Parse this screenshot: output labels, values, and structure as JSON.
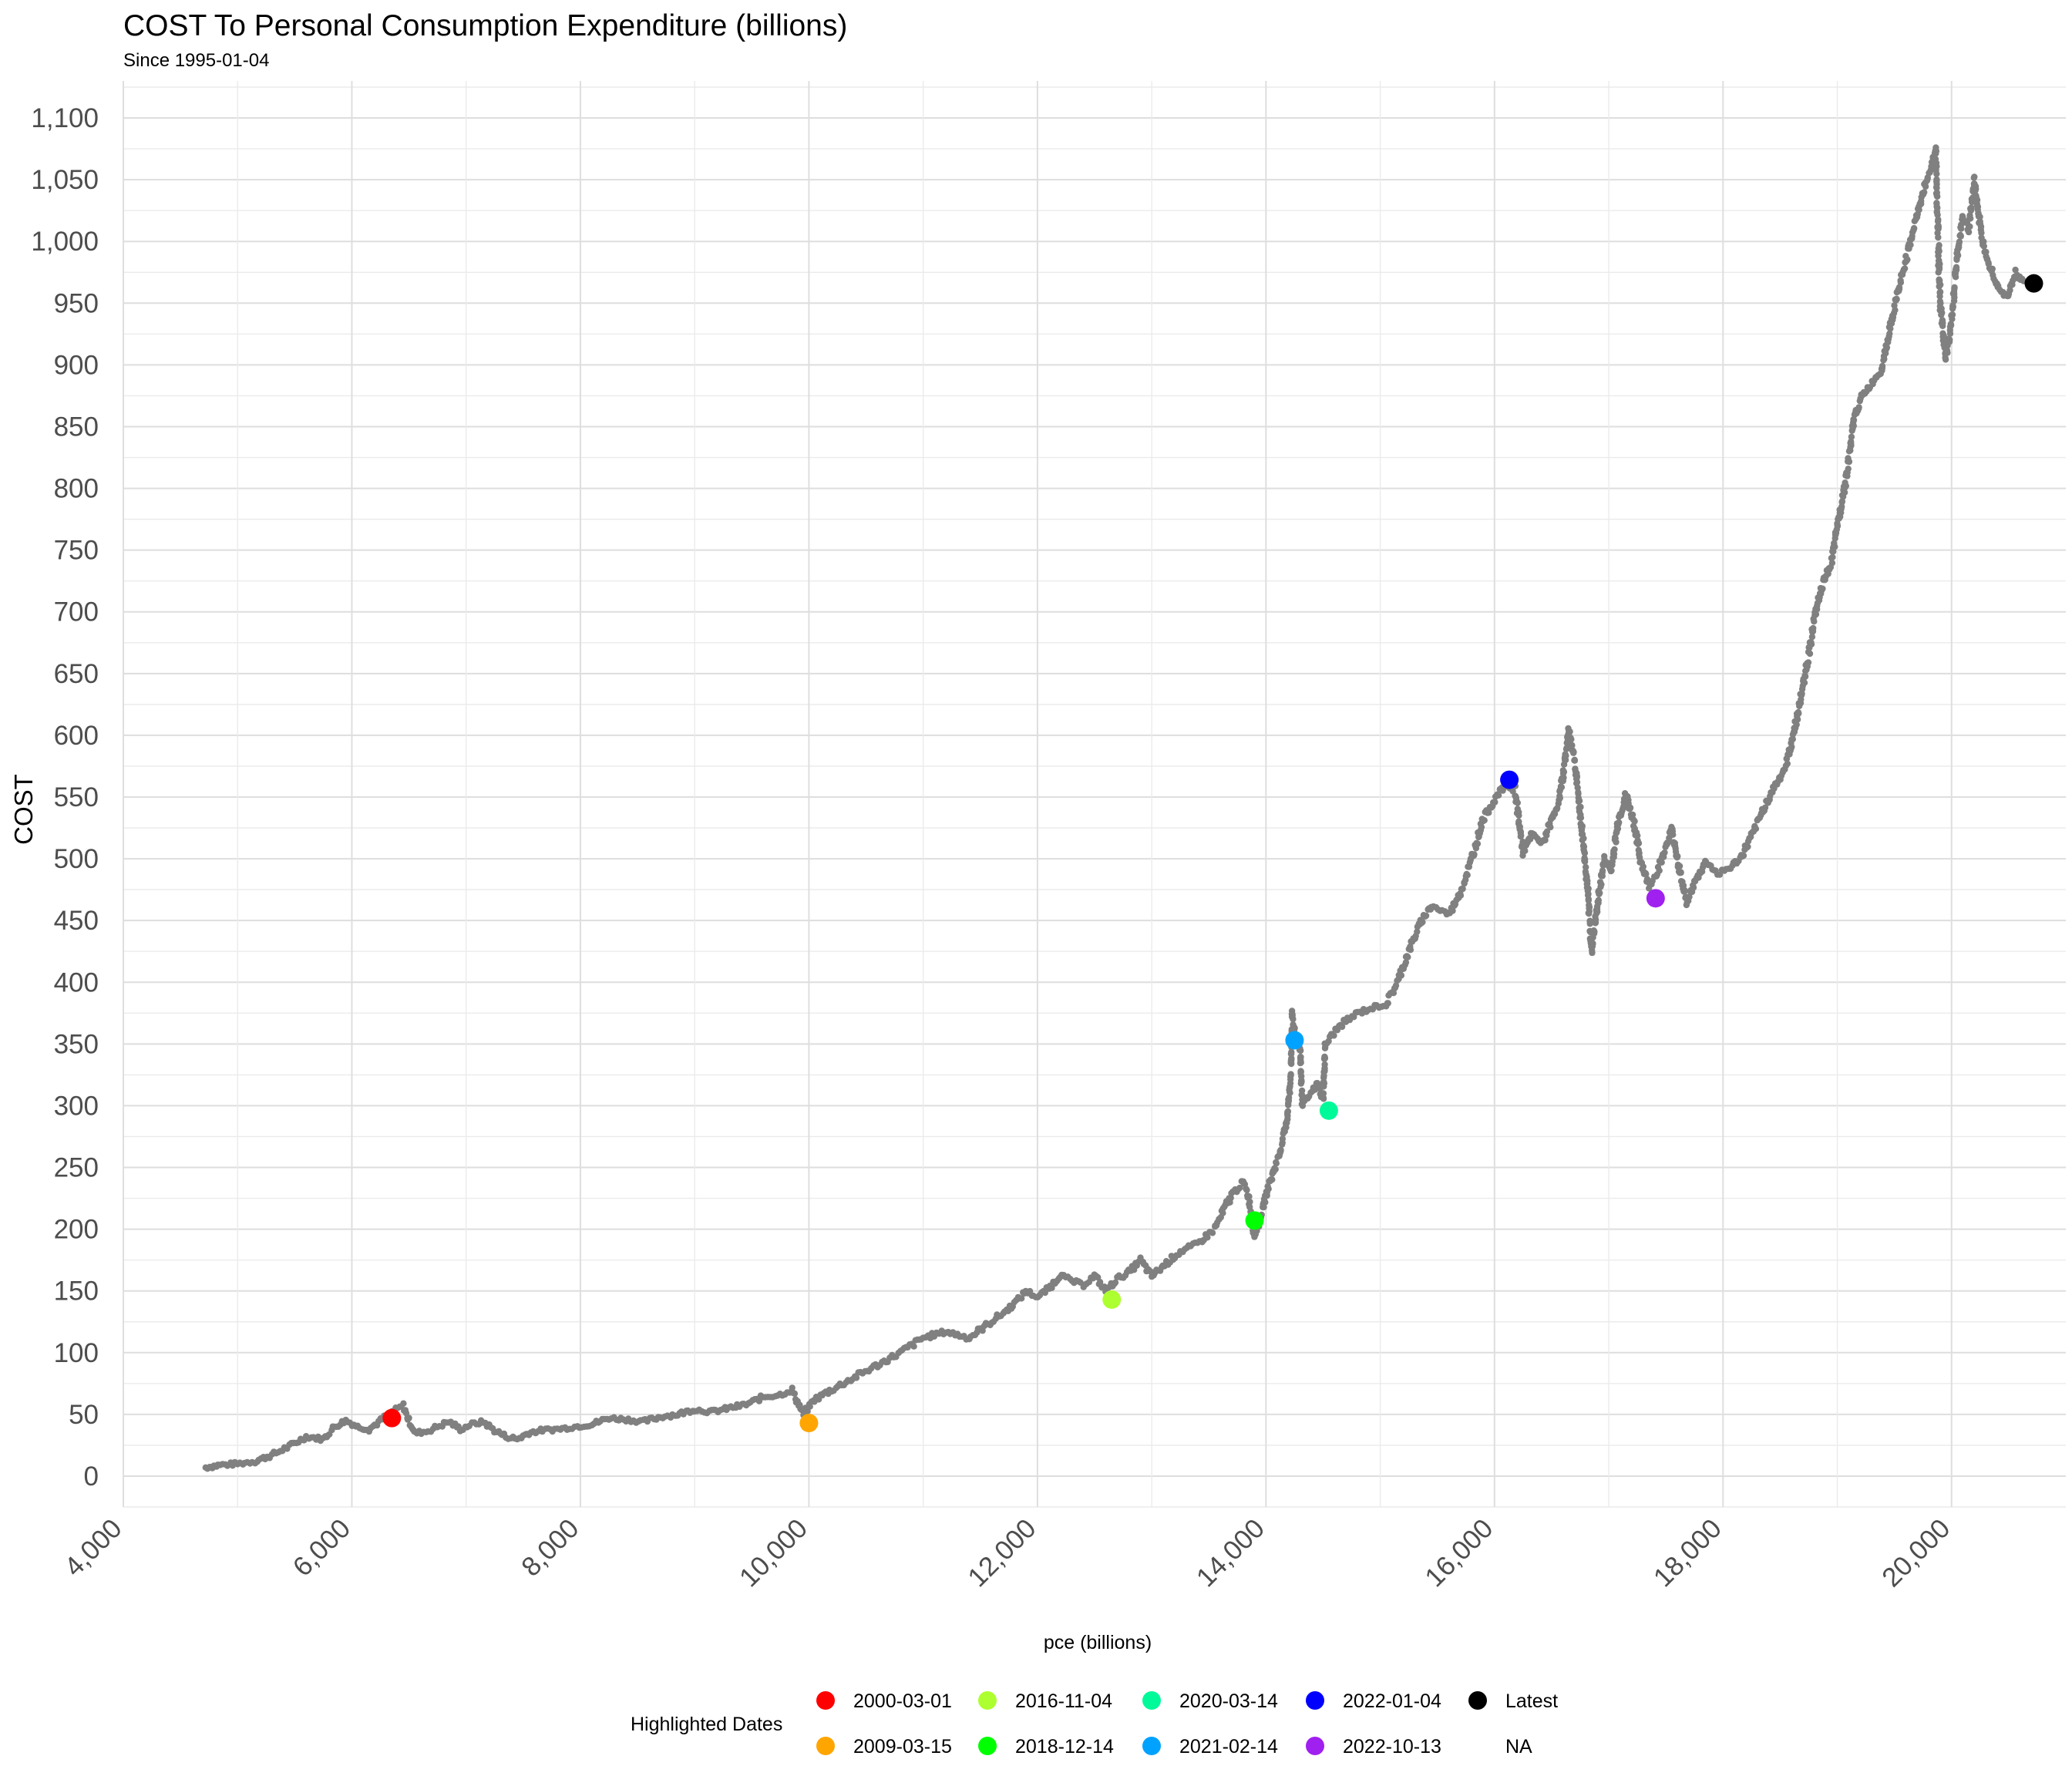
{
  "chart_data": {
    "type": "scatter",
    "title": "COST To Personal Consumption Expenditure (billions)",
    "subtitle": "Since 1995-01-04",
    "xlabel": "pce (billions)",
    "ylabel": "COST",
    "xlim": [
      4000,
      21000
    ],
    "ylim": [
      -25,
      1130
    ],
    "x_ticks": [
      4000,
      6000,
      8000,
      10000,
      12000,
      14000,
      16000,
      18000,
      20000
    ],
    "x_tick_labels": [
      "4,000",
      "6,000",
      "8,000",
      "10,000",
      "12,000",
      "14,000",
      "16,000",
      "18,000",
      "20,000"
    ],
    "y_ticks": [
      0,
      50,
      100,
      150,
      200,
      250,
      300,
      350,
      400,
      450,
      500,
      550,
      600,
      650,
      700,
      750,
      800,
      850,
      900,
      950,
      1000,
      1050,
      1100
    ],
    "y_tick_labels": [
      "0",
      "50",
      "100",
      "150",
      "200",
      "250",
      "300",
      "350",
      "400",
      "450",
      "500",
      "550",
      "600",
      "650",
      "700",
      "750",
      "800",
      "850",
      "900",
      "950",
      "1,000",
      "1,050",
      "1,100"
    ],
    "grid": true,
    "background_series": {
      "color": "#808080",
      "points": [
        [
          4720,
          7
        ],
        [
          4850,
          9
        ],
        [
          5000,
          10
        ],
        [
          5150,
          12
        ],
        [
          5300,
          17
        ],
        [
          5450,
          24
        ],
        [
          5600,
          32
        ],
        [
          5750,
          30
        ],
        [
          5850,
          40
        ],
        [
          5950,
          45
        ],
        [
          6050,
          40
        ],
        [
          6150,
          38
        ],
        [
          6250,
          45
        ],
        [
          6350,
          52
        ],
        [
          6450,
          57
        ],
        [
          6500,
          45
        ],
        [
          6550,
          35
        ],
        [
          6650,
          36
        ],
        [
          6750,
          40
        ],
        [
          6850,
          44
        ],
        [
          6950,
          38
        ],
        [
          7050,
          42
        ],
        [
          7150,
          44
        ],
        [
          7250,
          37
        ],
        [
          7350,
          32
        ],
        [
          7450,
          30
        ],
        [
          7550,
          35
        ],
        [
          7650,
          37
        ],
        [
          7800,
          38
        ],
        [
          7950,
          40
        ],
        [
          8100,
          42
        ],
        [
          8250,
          47
        ],
        [
          8400,
          46
        ],
        [
          8550,
          44
        ],
        [
          8700,
          48
        ],
        [
          8850,
          50
        ],
        [
          9000,
          54
        ],
        [
          9150,
          52
        ],
        [
          9300,
          55
        ],
        [
          9450,
          58
        ],
        [
          9600,
          64
        ],
        [
          9750,
          66
        ],
        [
          9850,
          70
        ],
        [
          9900,
          60
        ],
        [
          9950,
          50
        ],
        [
          10050,
          62
        ],
        [
          10200,
          70
        ],
        [
          10400,
          80
        ],
        [
          10600,
          90
        ],
        [
          10800,
          100
        ],
        [
          11000,
          112
        ],
        [
          11200,
          117
        ],
        [
          11400,
          112
        ],
        [
          11550,
          122
        ],
        [
          11700,
          132
        ],
        [
          11800,
          140
        ],
        [
          11900,
          150
        ],
        [
          12000,
          145
        ],
        [
          12100,
          152
        ],
        [
          12200,
          163
        ],
        [
          12300,
          158
        ],
        [
          12400,
          155
        ],
        [
          12500,
          162
        ],
        [
          12600,
          150
        ],
        [
          12700,
          160
        ],
        [
          12800,
          165
        ],
        [
          12900,
          175
        ],
        [
          13000,
          162
        ],
        [
          13100,
          170
        ],
        [
          13250,
          182
        ],
        [
          13400,
          188
        ],
        [
          13550,
          200
        ],
        [
          13700,
          228
        ],
        [
          13800,
          238
        ],
        [
          13850,
          225
        ],
        [
          13900,
          195
        ],
        [
          13950,
          208
        ],
        [
          14000,
          228
        ],
        [
          14050,
          242
        ],
        [
          14120,
          262
        ],
        [
          14180,
          285
        ],
        [
          14200,
          305
        ],
        [
          14220,
          330
        ],
        [
          14230,
          375
        ],
        [
          14250,
          360
        ],
        [
          14300,
          345
        ],
        [
          14320,
          300
        ],
        [
          14380,
          308
        ],
        [
          14450,
          318
        ],
        [
          14500,
          305
        ],
        [
          14520,
          350
        ],
        [
          14650,
          365
        ],
        [
          14800,
          375
        ],
        [
          14950,
          380
        ],
        [
          15050,
          382
        ],
        [
          15150,
          400
        ],
        [
          15250,
          425
        ],
        [
          15350,
          448
        ],
        [
          15450,
          462
        ],
        [
          15600,
          455
        ],
        [
          15700,
          472
        ],
        [
          15800,
          500
        ],
        [
          15900,
          532
        ],
        [
          16000,
          548
        ],
        [
          16100,
          560
        ],
        [
          16180,
          555
        ],
        [
          16250,
          505
        ],
        [
          16330,
          520
        ],
        [
          16420,
          512
        ],
        [
          16500,
          532
        ],
        [
          16560,
          545
        ],
        [
          16600,
          568
        ],
        [
          16650,
          605
        ],
        [
          16700,
          580
        ],
        [
          16780,
          510
        ],
        [
          16820,
          470
        ],
        [
          16850,
          425
        ],
        [
          16900,
          462
        ],
        [
          16960,
          500
        ],
        [
          17020,
          490
        ],
        [
          17080,
          530
        ],
        [
          17150,
          552
        ],
        [
          17220,
          530
        ],
        [
          17280,
          498
        ],
        [
          17350,
          478
        ],
        [
          17420,
          488
        ],
        [
          17500,
          510
        ],
        [
          17550,
          525
        ],
        [
          17600,
          500
        ],
        [
          17680,
          465
        ],
        [
          17750,
          480
        ],
        [
          17850,
          498
        ],
        [
          17950,
          488
        ],
        [
          18050,
          492
        ],
        [
          18150,
          500
        ],
        [
          18250,
          518
        ],
        [
          18350,
          540
        ],
        [
          18450,
          558
        ],
        [
          18550,
          575
        ],
        [
          18650,
          615
        ],
        [
          18720,
          650
        ],
        [
          18800,
          695
        ],
        [
          18880,
          725
        ],
        [
          18950,
          740
        ],
        [
          19000,
          770
        ],
        [
          19080,
          810
        ],
        [
          19150,
          858
        ],
        [
          19220,
          875
        ],
        [
          19300,
          885
        ],
        [
          19380,
          895
        ],
        [
          19450,
          925
        ],
        [
          19520,
          955
        ],
        [
          19600,
          985
        ],
        [
          19680,
          1015
        ],
        [
          19750,
          1040
        ],
        [
          19820,
          1060
        ],
        [
          19860,
          1075
        ],
        [
          19900,
          950
        ],
        [
          19950,
          905
        ],
        [
          20000,
          935
        ],
        [
          20050,
          990
        ],
        [
          20100,
          1020
        ],
        [
          20150,
          1010
        ],
        [
          20200,
          1050
        ],
        [
          20260,
          1005
        ],
        [
          20320,
          985
        ],
        [
          20400,
          965
        ],
        [
          20480,
          955
        ],
        [
          20560,
          975
        ],
        [
          20640,
          965
        ]
      ]
    },
    "highlights": [
      {
        "name": "2000-03-01",
        "color": "#ff0000",
        "x": 6350,
        "y": 47
      },
      {
        "name": "2009-03-15",
        "color": "#ffa500",
        "x": 10000,
        "y": 43
      },
      {
        "name": "2016-11-04",
        "color": "#adff2f",
        "x": 12650,
        "y": 143
      },
      {
        "name": "2018-12-14",
        "color": "#00ff00",
        "x": 13900,
        "y": 207
      },
      {
        "name": "2020-03-14",
        "color": "#00fa9a",
        "x": 14550,
        "y": 296
      },
      {
        "name": "2021-02-14",
        "color": "#00a2ff",
        "x": 14250,
        "y": 353
      },
      {
        "name": "2022-01-04",
        "color": "#0000ff",
        "x": 16130,
        "y": 564
      },
      {
        "name": "2022-10-13",
        "color": "#a020f0",
        "x": 17410,
        "y": 468
      },
      {
        "name": "Latest",
        "color": "#000000",
        "x": 20720,
        "y": 966
      }
    ],
    "legend": {
      "title": "Highlighted Dates",
      "position": "bottom",
      "entries": [
        {
          "label": "2000-03-01",
          "color": "#ff0000"
        },
        {
          "label": "2009-03-15",
          "color": "#ffa500"
        },
        {
          "label": "2016-11-04",
          "color": "#adff2f"
        },
        {
          "label": "2018-12-14",
          "color": "#00ff00"
        },
        {
          "label": "2020-03-14",
          "color": "#00fa9a"
        },
        {
          "label": "2021-02-14",
          "color": "#00a2ff"
        },
        {
          "label": "2022-01-04",
          "color": "#0000ff"
        },
        {
          "label": "2022-10-13",
          "color": "#a020f0"
        },
        {
          "label": "Latest",
          "color": "#000000"
        },
        {
          "label": "NA",
          "color": ""
        }
      ]
    }
  }
}
